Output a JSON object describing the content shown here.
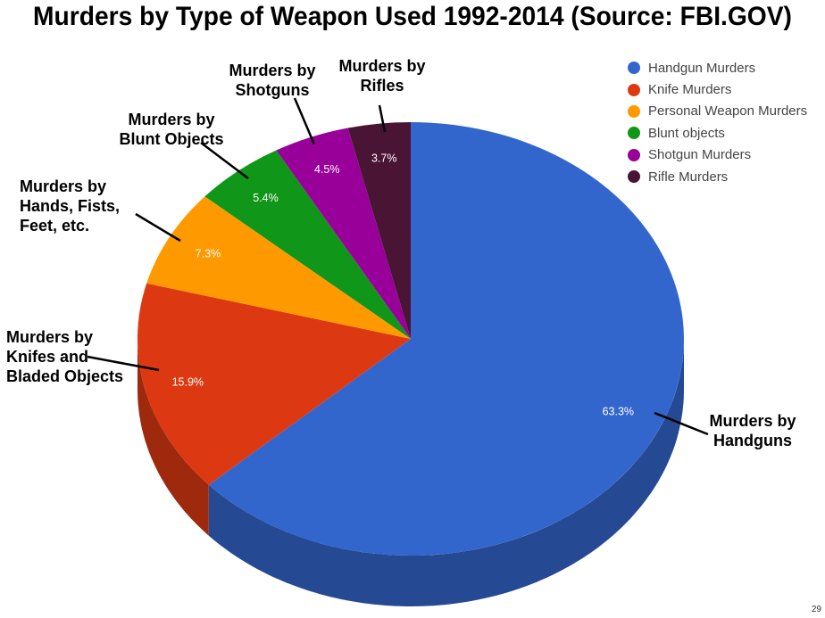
{
  "slide": {
    "title": "Murders by Type of Weapon Used 1992-2014 (Source: FBI.GOV)",
    "page_number": "29"
  },
  "chart_data": {
    "type": "pie",
    "title": "Murders by Type of Weapon Used 1992-2014 (Source: FBI.GOV)",
    "slices": [
      {
        "name": "Handgun Murders",
        "value": 63.3,
        "label": "63.3%",
        "color": "#3366cc",
        "callout": [
          "Murders by",
          "Handguns"
        ]
      },
      {
        "name": "Knife Murders",
        "value": 15.9,
        "label": "15.9%",
        "color": "#dc3912",
        "callout": [
          "Murders by",
          "Knifes and",
          "Bladed Objects"
        ]
      },
      {
        "name": "Personal Weapon Murders",
        "value": 7.3,
        "label": "7.3%",
        "color": "#ff9900",
        "callout": [
          "Murders by",
          "Hands, Fists,",
          "Feet, etc."
        ]
      },
      {
        "name": "Blunt objects",
        "value": 5.4,
        "label": "5.4%",
        "color": "#109618",
        "callout": [
          "Murders by",
          "Blunt Objects"
        ]
      },
      {
        "name": "Shotgun Murders",
        "value": 4.5,
        "label": "4.5%",
        "color": "#990099",
        "callout": [
          "Murders by",
          "Shotguns"
        ]
      },
      {
        "name": "Rifle Murders",
        "value": 3.7,
        "label": "3.7%",
        "color": "#4a1435",
        "callout": [
          "Murders by",
          "Rifles"
        ]
      }
    ],
    "style": "3d",
    "legend_position": "top-right"
  }
}
